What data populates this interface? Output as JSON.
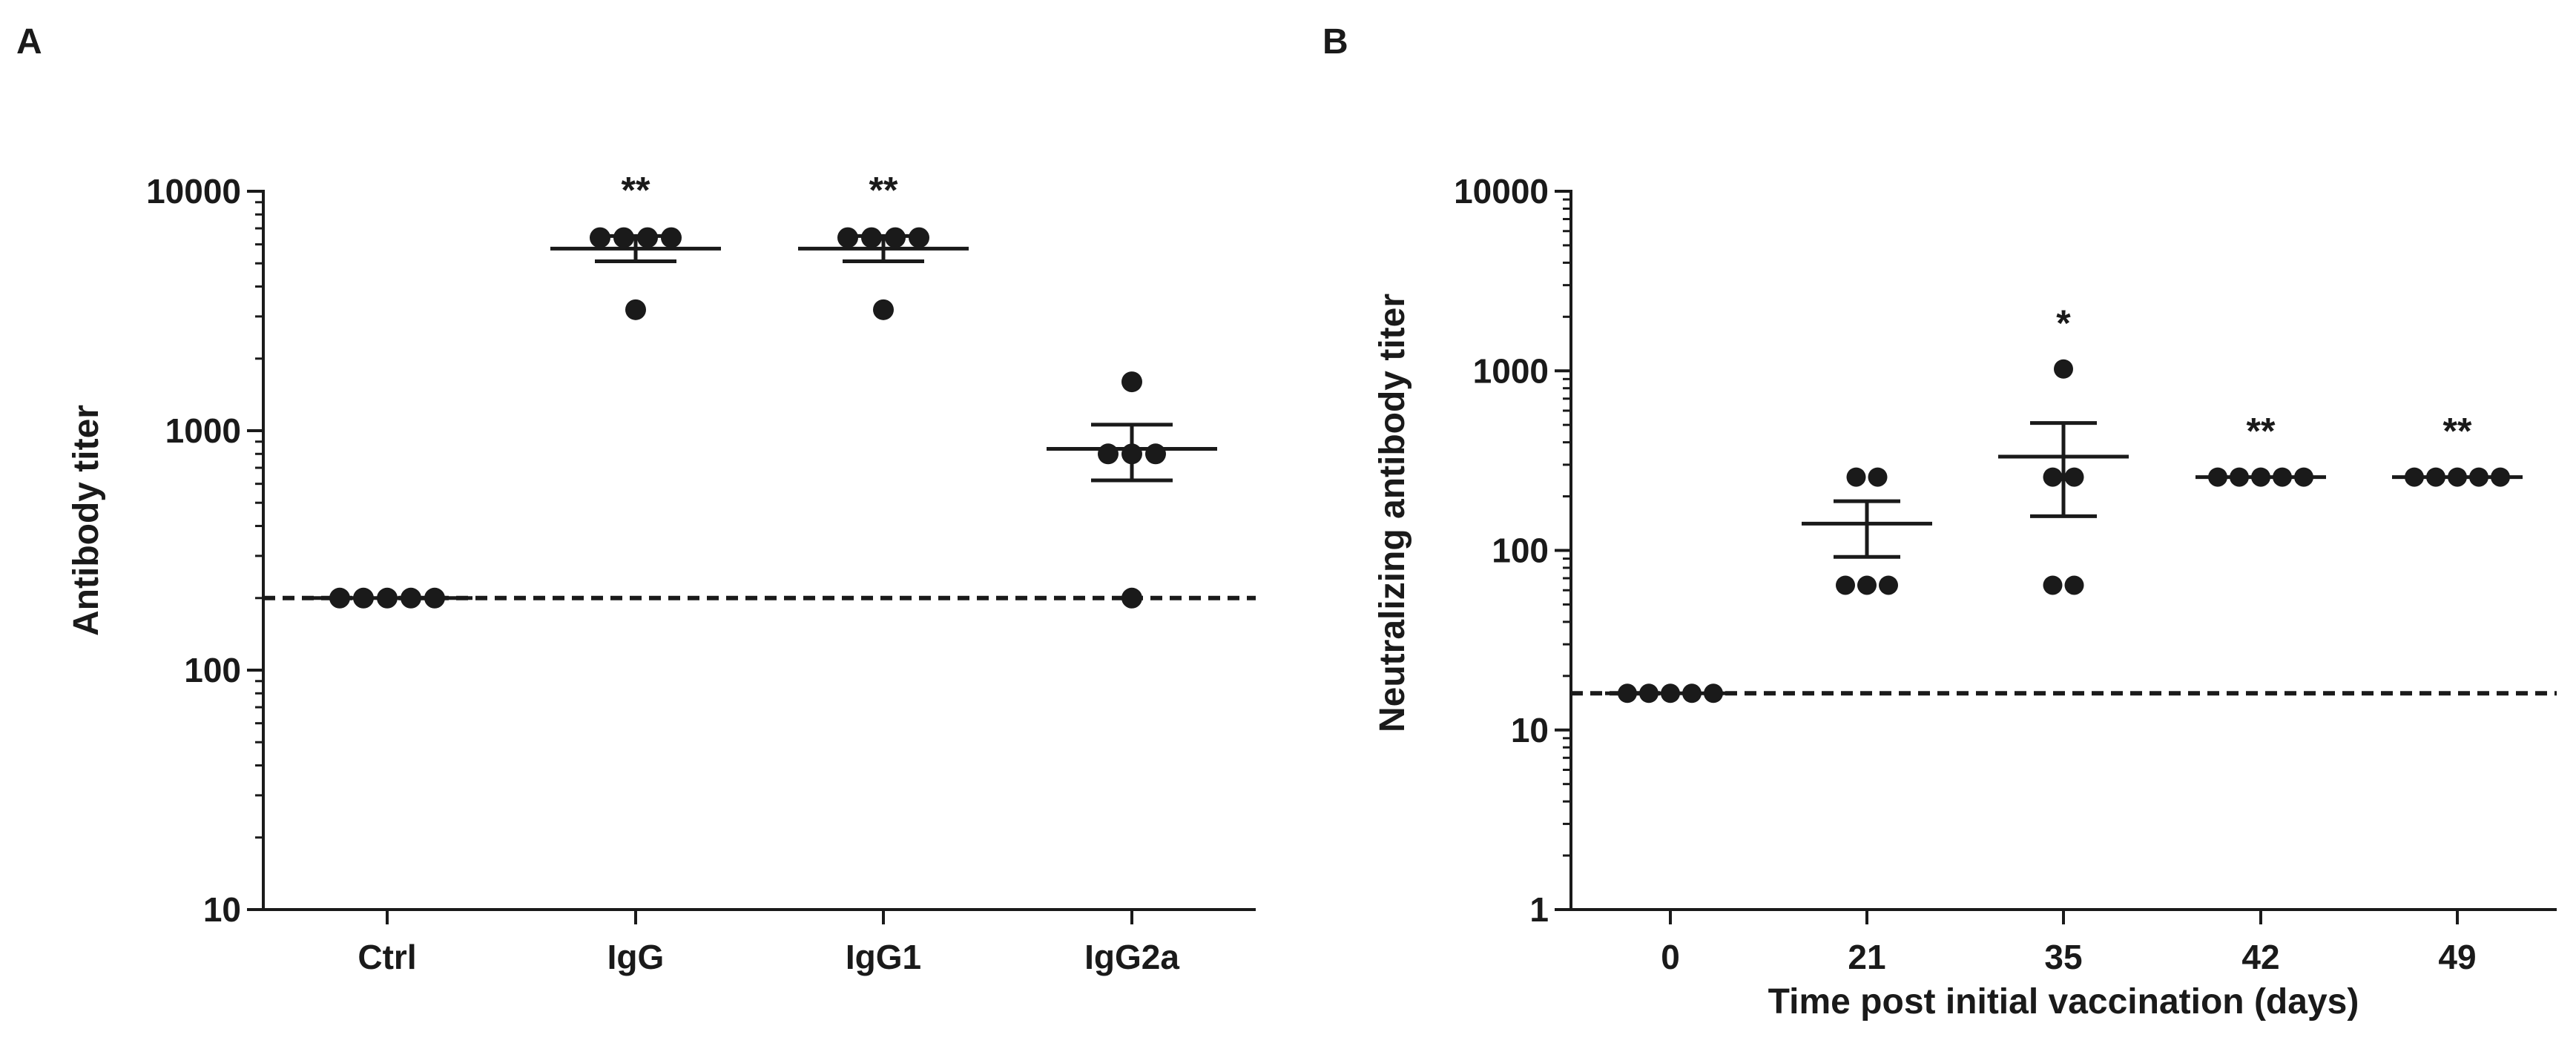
{
  "chart_data": [
    {
      "panel_label": "A",
      "type": "scatter",
      "title": "",
      "xlabel": "",
      "ylabel": "Antibody titer",
      "yscale": "log",
      "ylim": [
        10,
        10000
      ],
      "yticks": [
        {
          "value": 10,
          "label": "10"
        },
        {
          "value": 100,
          "label": "100"
        },
        {
          "value": 1000,
          "label": "1000"
        },
        {
          "value": 10000,
          "label": "10000"
        }
      ],
      "categories": [
        "Ctrl",
        "IgG",
        "IgG1",
        "IgG2a"
      ],
      "groups": [
        {
          "category": "Ctrl",
          "points": [
            200,
            200,
            200,
            200,
            200
          ],
          "mean": 200,
          "sem": [
            200,
            200
          ],
          "significance": ""
        },
        {
          "category": "IgG",
          "points": [
            6400,
            6400,
            6400,
            6400,
            3200
          ],
          "mean": 5760,
          "sem": [
            5100,
            6500
          ],
          "significance": "**"
        },
        {
          "category": "IgG1",
          "points": [
            6400,
            6400,
            6400,
            6400,
            3200
          ],
          "mean": 5760,
          "sem": [
            5100,
            6500
          ],
          "significance": "**"
        },
        {
          "category": "IgG2a",
          "points": [
            1600,
            800,
            800,
            800,
            200
          ],
          "mean": 840,
          "sem": [
            620,
            1060
          ],
          "significance": ""
        }
      ],
      "detection_limit": 200,
      "grid": false,
      "legend": "none"
    },
    {
      "panel_label": "B",
      "type": "scatter",
      "title": "",
      "xlabel": "Time post initial vaccination (days)",
      "ylabel": "Neutralizing antibody titer",
      "yscale": "log",
      "ylim": [
        1,
        10000
      ],
      "yticks": [
        {
          "value": 1,
          "label": "1"
        },
        {
          "value": 10,
          "label": "10"
        },
        {
          "value": 100,
          "label": "100"
        },
        {
          "value": 1000,
          "label": "1000"
        },
        {
          "value": 10000,
          "label": "10000"
        }
      ],
      "categories": [
        "0",
        "21",
        "35",
        "42",
        "49"
      ],
      "groups": [
        {
          "category": "0",
          "points": [
            16,
            16,
            16,
            16,
            16
          ],
          "mean": 16,
          "sem": [
            16,
            16
          ],
          "significance": ""
        },
        {
          "category": "21",
          "points": [
            256,
            256,
            64,
            64,
            64
          ],
          "mean": 141,
          "sem": [
            92,
            188
          ],
          "significance": ""
        },
        {
          "category": "35",
          "points": [
            1024,
            256,
            256,
            64,
            64
          ],
          "mean": 333,
          "sem": [
            155,
            512
          ],
          "significance": "*"
        },
        {
          "category": "42",
          "points": [
            256,
            256,
            256,
            256,
            256
          ],
          "mean": 256,
          "sem": [
            256,
            256
          ],
          "significance": "**"
        },
        {
          "category": "49",
          "points": [
            256,
            256,
            256,
            256,
            256
          ],
          "mean": 256,
          "sem": [
            256,
            256
          ],
          "significance": "**"
        }
      ],
      "detection_limit": 16,
      "grid": false,
      "legend": "none"
    }
  ]
}
